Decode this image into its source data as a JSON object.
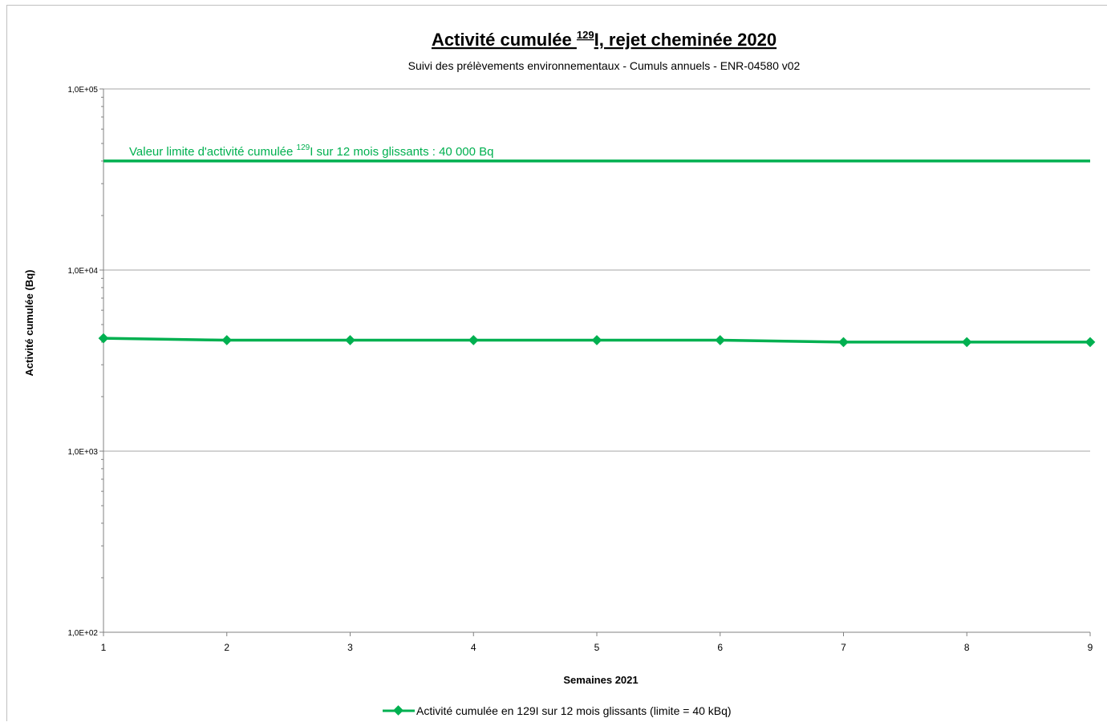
{
  "chart_data": {
    "type": "line",
    "title_main": "Activité cumulée ",
    "title_sup": "129",
    "title_rest": "I, rejet cheminée 2020",
    "subtitle": "Suivi des prélèvements environnementaux - Cumuls annuels - ENR-04580 v02",
    "xlabel": "Semaines 2021",
    "ylabel": "Activité cumulée (Bq)",
    "y_scale": "log",
    "ylim": [
      100,
      100000
    ],
    "xlim": [
      1,
      9
    ],
    "y_ticks": [
      "1,0E+02",
      "1,0E+03",
      "1,0E+04",
      "1,0E+05"
    ],
    "y_tick_values": [
      100,
      1000,
      10000,
      100000
    ],
    "x_ticks": [
      "1",
      "2",
      "3",
      "4",
      "5",
      "6",
      "7",
      "8",
      "9"
    ],
    "grid": "horizontal major",
    "legend_position": "bottom",
    "series": [
      {
        "name": "Activité cumulée en 129I sur 12 mois glissants (limite = 40 kBq)",
        "color": "#00b050",
        "x": [
          1,
          2,
          3,
          4,
          5,
          6,
          7,
          8,
          9
        ],
        "values": [
          4200,
          4100,
          4100,
          4100,
          4100,
          4100,
          4000,
          4000,
          4000
        ]
      }
    ],
    "limit_line": {
      "value": 40000,
      "color": "#00b050",
      "label_pre": "Valeur limite d'activité cumulée ",
      "label_sup": "129",
      "label_post": "I sur 12 mois  glissants : 40 000 Bq"
    }
  }
}
